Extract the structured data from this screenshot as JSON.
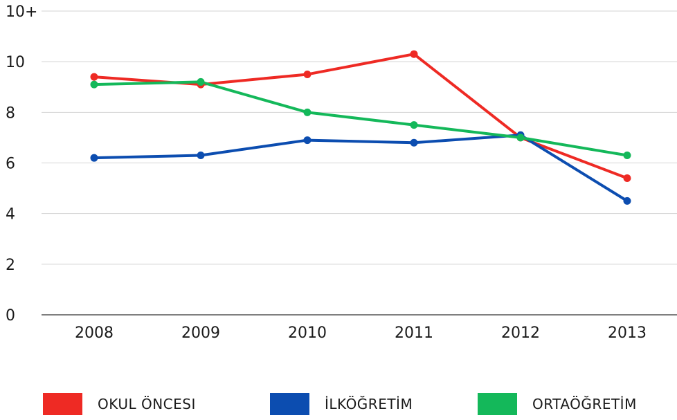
{
  "chart_data": {
    "type": "line",
    "categories": [
      "2008",
      "2009",
      "2010",
      "2011",
      "2012",
      "2013"
    ],
    "y_ticks": [
      "0",
      "2",
      "4",
      "6",
      "8",
      "10",
      "10+"
    ],
    "ylim": [
      0,
      12
    ],
    "grid": true,
    "legend_position": "bottom",
    "series": [
      {
        "name": "OKUL ÖNCESI",
        "color": "#ee2a24",
        "values": [
          9.4,
          9.1,
          9.5,
          10.3,
          7.0,
          5.4
        ]
      },
      {
        "name": "İLKÖĞRETİM",
        "color": "#0c4db0",
        "values": [
          6.2,
          6.3,
          6.9,
          6.8,
          7.1,
          4.5
        ]
      },
      {
        "name": "ORTAÖĞRETİM",
        "color": "#14b85a",
        "values": [
          9.1,
          9.2,
          8.0,
          7.5,
          7.0,
          6.3
        ]
      }
    ]
  }
}
